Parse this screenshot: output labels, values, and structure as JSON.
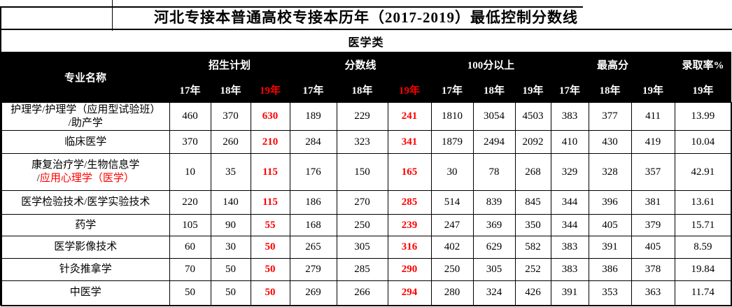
{
  "title": "河北专接本普通高校专接本历年（2017-2019）最低控制分数线",
  "subtitle": "医学类",
  "colors": {
    "accent_red": "#FF0000",
    "header_bg": "#000000",
    "header_text": "#FFFFFF",
    "grid": "#000000"
  },
  "header": {
    "major_col": "专业名称",
    "groups": [
      {
        "key": "enrollment-plan",
        "label": "招生计划",
        "years": [
          {
            "label": "17年",
            "red": false
          },
          {
            "label": "18年",
            "red": false
          },
          {
            "label": "19年",
            "red": true
          }
        ]
      },
      {
        "key": "score-line",
        "label": "分数线",
        "years": [
          {
            "label": "17年",
            "red": false
          },
          {
            "label": "18年",
            "red": false
          },
          {
            "label": "19年",
            "red": true
          }
        ]
      },
      {
        "key": "above-100",
        "label": "100分以上",
        "years": [
          {
            "label": "17年",
            "red": false
          },
          {
            "label": "18年",
            "red": false
          },
          {
            "label": "19年",
            "red": false
          }
        ]
      },
      {
        "key": "highest-score",
        "label": "最高分",
        "years": [
          {
            "label": "17年",
            "red": false
          },
          {
            "label": "18年",
            "red": false
          },
          {
            "label": "19年",
            "red": false
          }
        ]
      },
      {
        "key": "admission-rate",
        "label": "录取率%",
        "years": [
          {
            "label": "19年",
            "red": false
          }
        ]
      }
    ]
  },
  "rows": [
    {
      "name_lines": [
        [
          {
            "text": "护理学/护理学（应用型试验班）",
            "red": false
          }
        ],
        [
          {
            "text": "/助产学",
            "red": false
          }
        ]
      ],
      "values": [
        {
          "v": "460",
          "red": false
        },
        {
          "v": "370",
          "red": false
        },
        {
          "v": "630",
          "red": true
        },
        {
          "v": "189",
          "red": false
        },
        {
          "v": "229",
          "red": false
        },
        {
          "v": "241",
          "red": true
        },
        {
          "v": "1810",
          "red": false
        },
        {
          "v": "3054",
          "red": false
        },
        {
          "v": "4503",
          "red": false
        },
        {
          "v": "383",
          "red": false
        },
        {
          "v": "377",
          "red": false
        },
        {
          "v": "411",
          "red": false
        },
        {
          "v": "13.99",
          "red": false
        }
      ]
    },
    {
      "name_lines": [
        [
          {
            "text": "临床医学",
            "red": false
          }
        ]
      ],
      "values": [
        {
          "v": "370",
          "red": false
        },
        {
          "v": "260",
          "red": false
        },
        {
          "v": "210",
          "red": true
        },
        {
          "v": "284",
          "red": false
        },
        {
          "v": "323",
          "red": false
        },
        {
          "v": "341",
          "red": true
        },
        {
          "v": "1879",
          "red": false
        },
        {
          "v": "2494",
          "red": false
        },
        {
          "v": "2092",
          "red": false
        },
        {
          "v": "410",
          "red": false
        },
        {
          "v": "430",
          "red": false
        },
        {
          "v": "419",
          "red": false
        },
        {
          "v": "10.04",
          "red": false
        }
      ]
    },
    {
      "name_lines": [
        [
          {
            "text": "康复治疗学/生物信息学",
            "red": false
          }
        ],
        [
          {
            "text": "/",
            "red": false
          },
          {
            "text": "应用心理学（医学）",
            "red": true
          }
        ]
      ],
      "values": [
        {
          "v": "10",
          "red": false
        },
        {
          "v": "35",
          "red": false
        },
        {
          "v": "115",
          "red": true
        },
        {
          "v": "176",
          "red": false
        },
        {
          "v": "150",
          "red": false
        },
        {
          "v": "165",
          "red": true
        },
        {
          "v": "30",
          "red": false
        },
        {
          "v": "78",
          "red": false
        },
        {
          "v": "268",
          "red": false
        },
        {
          "v": "329",
          "red": false
        },
        {
          "v": "328",
          "red": false
        },
        {
          "v": "357",
          "red": false
        },
        {
          "v": "42.91",
          "red": false
        }
      ]
    },
    {
      "name_lines": [
        [
          {
            "text": "医学检验技术/医学实验技术",
            "red": false
          }
        ]
      ],
      "values": [
        {
          "v": "220",
          "red": false
        },
        {
          "v": "140",
          "red": false
        },
        {
          "v": "115",
          "red": true
        },
        {
          "v": "186",
          "red": false
        },
        {
          "v": "270",
          "red": false
        },
        {
          "v": "285",
          "red": true
        },
        {
          "v": "514",
          "red": false
        },
        {
          "v": "839",
          "red": false
        },
        {
          "v": "845",
          "red": false
        },
        {
          "v": "344",
          "red": false
        },
        {
          "v": "396",
          "red": false
        },
        {
          "v": "381",
          "red": false
        },
        {
          "v": "13.61",
          "red": false
        }
      ]
    },
    {
      "name_lines": [
        [
          {
            "text": "药学",
            "red": false
          }
        ]
      ],
      "values": [
        {
          "v": "105",
          "red": false
        },
        {
          "v": "90",
          "red": false
        },
        {
          "v": "55",
          "red": true
        },
        {
          "v": "168",
          "red": false
        },
        {
          "v": "250",
          "red": false
        },
        {
          "v": "239",
          "red": true
        },
        {
          "v": "247",
          "red": false
        },
        {
          "v": "369",
          "red": false
        },
        {
          "v": "350",
          "red": false
        },
        {
          "v": "344",
          "red": false
        },
        {
          "v": "405",
          "red": false
        },
        {
          "v": "379",
          "red": false
        },
        {
          "v": "15.71",
          "red": false
        }
      ]
    },
    {
      "name_lines": [
        [
          {
            "text": "医学影像技术",
            "red": false
          }
        ]
      ],
      "values": [
        {
          "v": "60",
          "red": false
        },
        {
          "v": "30",
          "red": false
        },
        {
          "v": "50",
          "red": true
        },
        {
          "v": "265",
          "red": false
        },
        {
          "v": "305",
          "red": false
        },
        {
          "v": "316",
          "red": true
        },
        {
          "v": "402",
          "red": false
        },
        {
          "v": "629",
          "red": false
        },
        {
          "v": "582",
          "red": false
        },
        {
          "v": "383",
          "red": false
        },
        {
          "v": "391",
          "red": false
        },
        {
          "v": "405",
          "red": false
        },
        {
          "v": "8.59",
          "red": false
        }
      ]
    },
    {
      "name_lines": [
        [
          {
            "text": "针灸推拿学",
            "red": false
          }
        ]
      ],
      "values": [
        {
          "v": "70",
          "red": false
        },
        {
          "v": "50",
          "red": false
        },
        {
          "v": "50",
          "red": true
        },
        {
          "v": "279",
          "red": false
        },
        {
          "v": "285",
          "red": false
        },
        {
          "v": "290",
          "red": true
        },
        {
          "v": "250",
          "red": false
        },
        {
          "v": "305",
          "red": false
        },
        {
          "v": "252",
          "red": false
        },
        {
          "v": "383",
          "red": false
        },
        {
          "v": "386",
          "red": false
        },
        {
          "v": "378",
          "red": false
        },
        {
          "v": "19.84",
          "red": false
        }
      ]
    },
    {
      "name_lines": [
        [
          {
            "text": "中医学",
            "red": false
          }
        ]
      ],
      "values": [
        {
          "v": "50",
          "red": false
        },
        {
          "v": "50",
          "red": false
        },
        {
          "v": "50",
          "red": true
        },
        {
          "v": "269",
          "red": false
        },
        {
          "v": "266",
          "red": false
        },
        {
          "v": "294",
          "red": true
        },
        {
          "v": "280",
          "red": false
        },
        {
          "v": "324",
          "red": false
        },
        {
          "v": "426",
          "red": false
        },
        {
          "v": "391",
          "red": false
        },
        {
          "v": "353",
          "red": false
        },
        {
          "v": "363",
          "red": false
        },
        {
          "v": "11.74",
          "red": false
        }
      ]
    }
  ]
}
